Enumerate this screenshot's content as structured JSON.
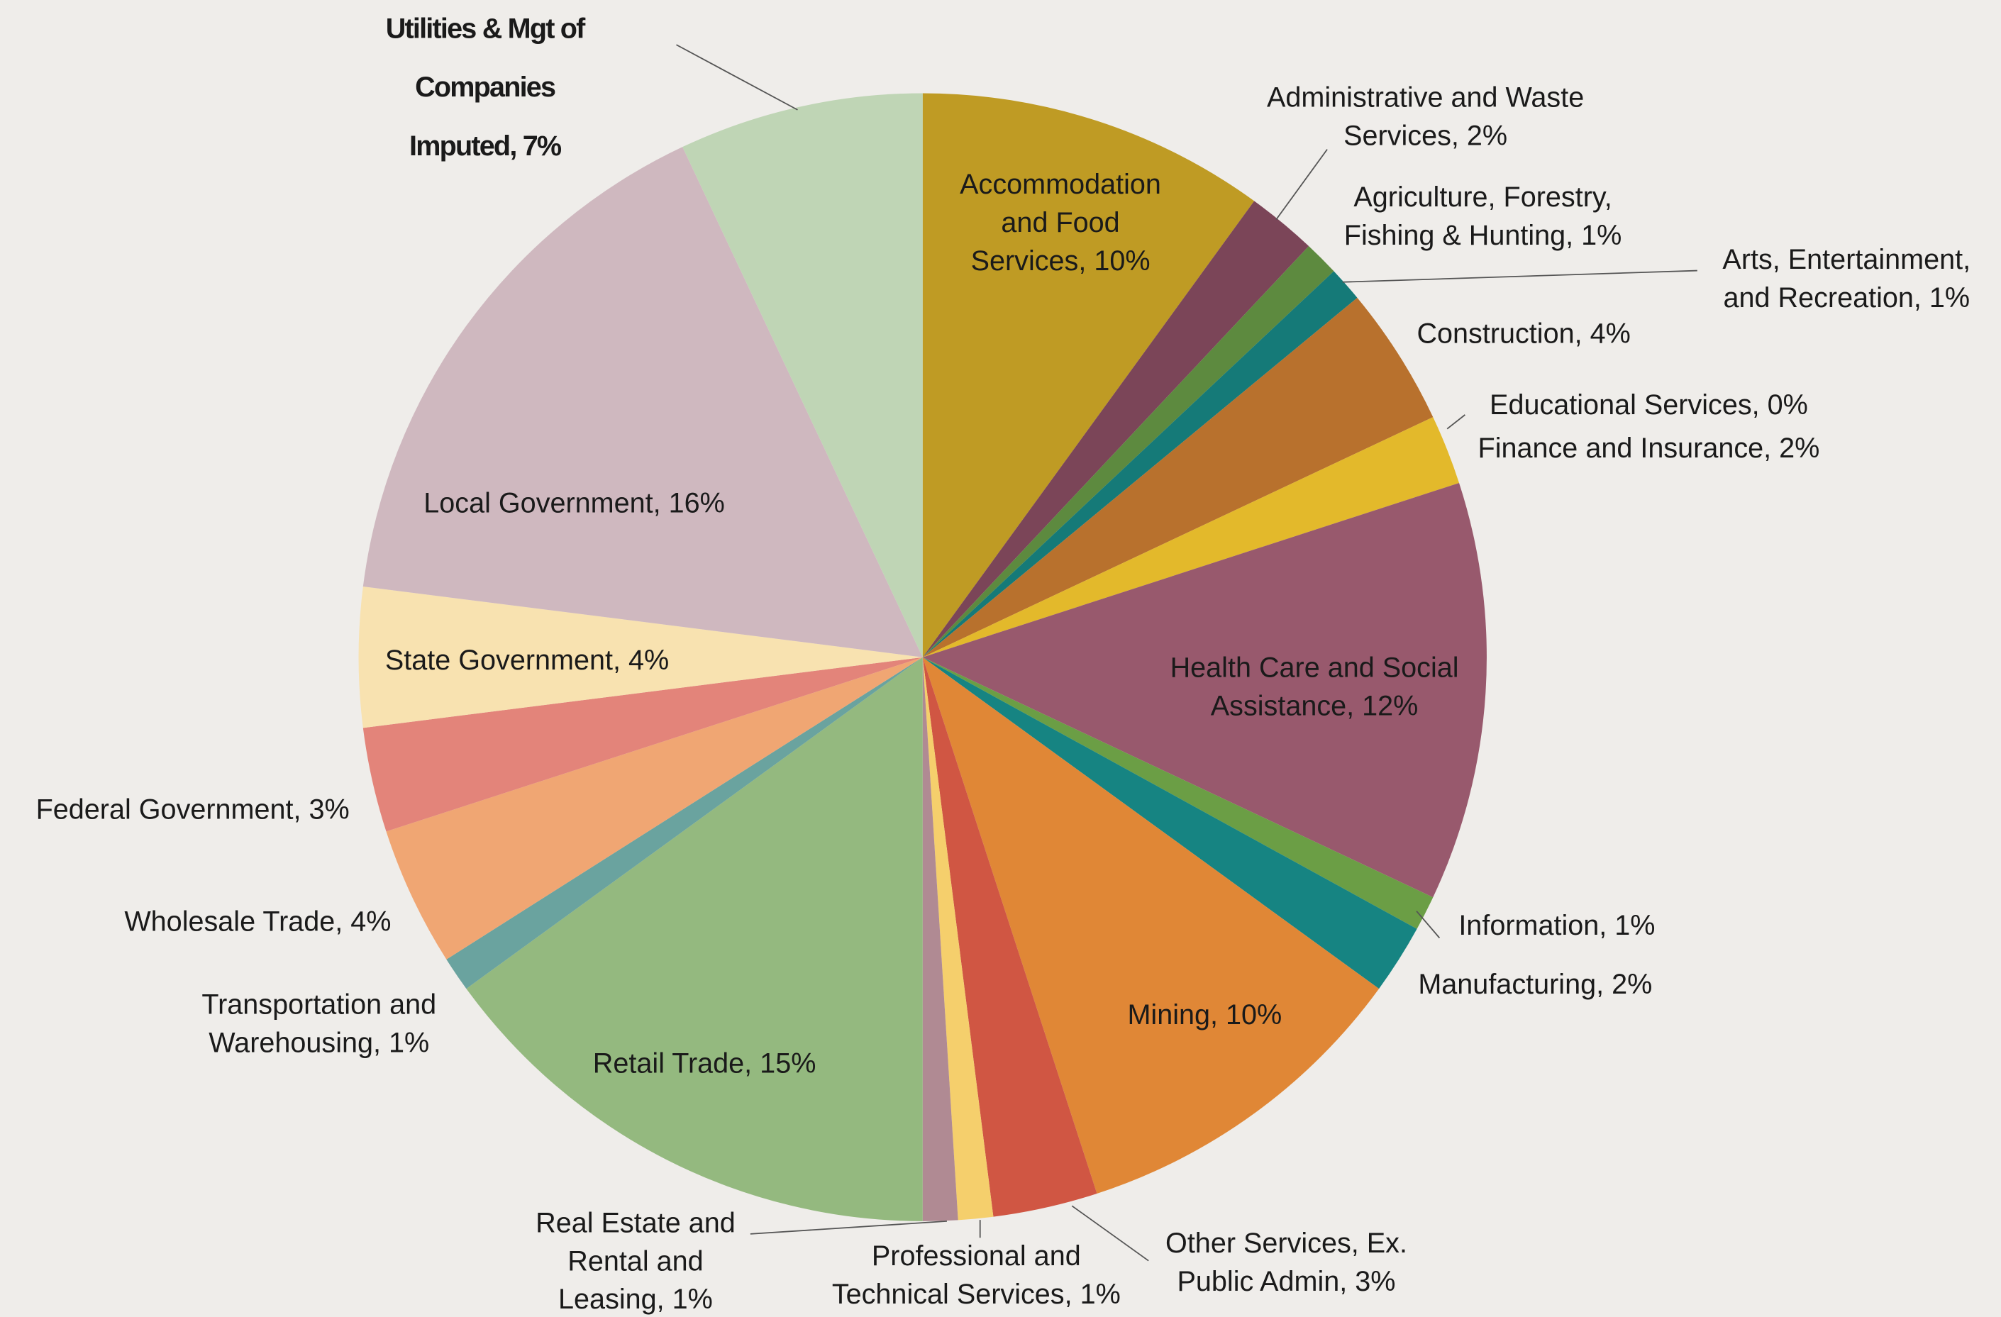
{
  "chart_data": {
    "type": "pie",
    "labels": [
      "Accommodation\nand Food\nServices, 10%",
      "Administrative and Waste\nServices, 2%",
      "Agriculture, Forestry,\nFishing & Hunting, 1%",
      "Arts, Entertainment,\nand Recreation, 1%",
      "Construction, 4%",
      "Educational Services, 0%",
      "Finance and Insurance, 2%",
      "Health Care and Social\nAssistance, 12%",
      "Information, 1%",
      "Manufacturing, 2%",
      "Mining, 10%",
      "Other Services, Ex.\nPublic Admin, 3%",
      "Professional and\nTechnical Services, 1%",
      "Real Estate and\nRental and\nLeasing, 1%",
      "Retail Trade, 15%",
      "Transportation and\nWarehousing, 1%",
      "Wholesale Trade, 4%",
      "Federal Government, 3%",
      "State Government, 4%",
      "Local Government, 16%",
      "Utilities & Mgt of\nCompanies\nImputed, 7%"
    ],
    "values": [
      10,
      2,
      1,
      1,
      4,
      0,
      2,
      12,
      1,
      2,
      10,
      3,
      1,
      1,
      15,
      1,
      4,
      3,
      4,
      16,
      7
    ],
    "colors": [
      "#bf9b24",
      "#7b4558",
      "#5d8a3f",
      "#157a78",
      "#b8712d",
      "#c0463c",
      "#e3b92b",
      "#98596d",
      "#6b9e45",
      "#168482",
      "#e08736",
      "#d05643",
      "#f5cf6c",
      "#b08a93",
      "#94b97f",
      "#6aa39f",
      "#f0a673",
      "#e3847a",
      "#f8e2b0",
      "#cfb8bf",
      "#bfd5b5"
    ]
  }
}
